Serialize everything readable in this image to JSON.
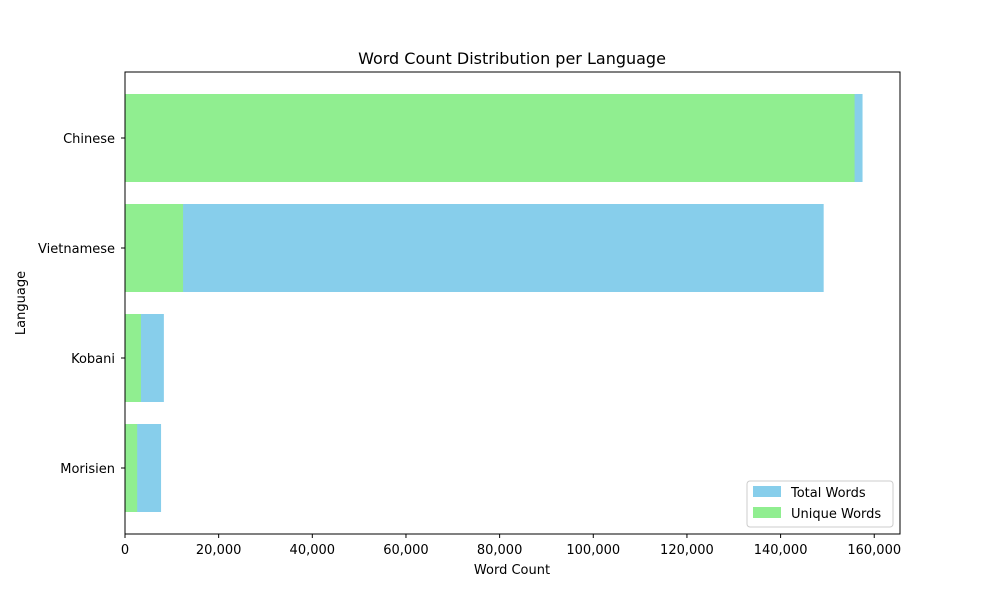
{
  "chart_data": {
    "type": "bar",
    "orientation": "horizontal",
    "title": "Word Count Distribution per Language",
    "xlabel": "Word Count",
    "ylabel": "Language",
    "categories": [
      "Chinese",
      "Vietnamese",
      "Kobani",
      "Morisien"
    ],
    "series": [
      {
        "name": "Total Words",
        "color": "#87ceeb",
        "values": [
          157500,
          149200,
          8300,
          7700
        ]
      },
      {
        "name": "Unique Words",
        "color": "#90ee90",
        "values": [
          155800,
          12400,
          3400,
          2600
        ]
      }
    ],
    "xlim": [
      0,
      165500
    ],
    "xticks": [
      0,
      20000,
      40000,
      60000,
      80000,
      100000,
      120000,
      140000,
      160000
    ],
    "xtick_labels": [
      "0",
      "20,000",
      "40,000",
      "60,000",
      "80,000",
      "100,000",
      "120,000",
      "140,000",
      "160,000"
    ],
    "grid": false,
    "legend_position": "bottom-right",
    "overlay": true
  }
}
